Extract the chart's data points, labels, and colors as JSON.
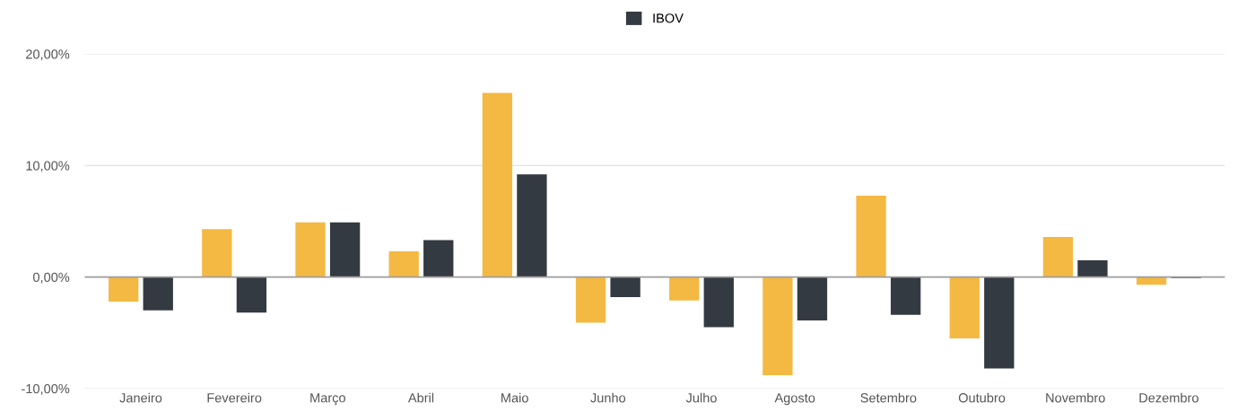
{
  "chart_data": {
    "type": "bar",
    "categories": [
      "Janeiro",
      "Fevereiro",
      "Março",
      "Abril",
      "Maio",
      "Junho",
      "Julho",
      "Agosto",
      "Setembro",
      "Outubro",
      "Novembro",
      "Dezembro"
    ],
    "series": [
      {
        "color": "#f4b942",
        "values": [
          -2.2,
          4.3,
          4.9,
          2.3,
          16.5,
          -4.1,
          -2.1,
          -8.8,
          7.3,
          -5.5,
          3.6,
          -0.7
        ]
      },
      {
        "name": "IBOV",
        "color": "#343a42",
        "values": [
          -3.0,
          -3.2,
          4.9,
          3.3,
          9.2,
          -1.8,
          -4.5,
          -3.9,
          -3.4,
          -8.2,
          1.5,
          -0.1
        ]
      }
    ],
    "ylim": [
      -10,
      20
    ],
    "yticks": [
      {
        "value": -10,
        "label": "-10,00%"
      },
      {
        "value": 0,
        "label": "0,00%"
      },
      {
        "value": 10,
        "label": "10,00%"
      },
      {
        "value": 20,
        "label": "20,00%"
      }
    ],
    "ref_lines": [
      {
        "axis": "y",
        "value": 0,
        "color": "#9e9e9e"
      }
    ],
    "grid": "y",
    "legend": "top"
  }
}
